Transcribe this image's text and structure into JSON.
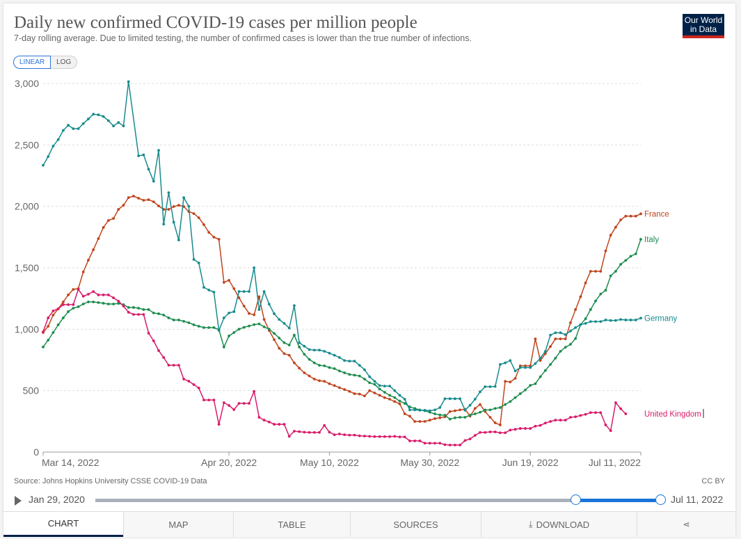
{
  "header": {
    "title": "Daily new confirmed COVID-19 cases per million people",
    "subtitle": "7-day rolling average. Due to limited testing, the number of confirmed cases is lower than the true number of infections.",
    "logo_line1": "Our World",
    "logo_line2": "in Data"
  },
  "scale_toggle": {
    "linear": "LINEAR",
    "log": "LOG",
    "selected": "LINEAR"
  },
  "footer": {
    "source": "Source: Johns Hopkins University CSSE COVID-19 Data",
    "license": "CC BY"
  },
  "timeline": {
    "start": "Jan 29, 2020",
    "end": "Jul 11, 2022",
    "range_start_fraction": 0.85,
    "range_end_fraction": 1.0
  },
  "tabs": [
    {
      "label": "CHART"
    },
    {
      "label": "MAP"
    },
    {
      "label": "TABLE"
    },
    {
      "label": "SOURCES"
    },
    {
      "label": "DOWNLOAD",
      "icon": "download-icon"
    },
    {
      "label": "",
      "icon": "share-icon"
    }
  ],
  "chart_data": {
    "type": "line",
    "title": "Daily new confirmed COVID-19 cases per million people",
    "x_start": "2022-03-14",
    "x_step": "1 day",
    "x_days": 119,
    "ylim": [
      0,
      3000
    ],
    "yticks": [
      0,
      500,
      1000,
      1500,
      2000,
      2500,
      3000
    ],
    "ytick_labels": [
      "0",
      "500",
      "1,000",
      "1,500",
      "2,000",
      "2,500",
      "3,000"
    ],
    "xticks": [
      {
        "day": 0,
        "label": "Mar 14, 2022"
      },
      {
        "day": 37,
        "label": "Apr 20, 2022"
      },
      {
        "day": 57,
        "label": "May 10, 2022"
      },
      {
        "day": 77,
        "label": "May 30, 2022"
      },
      {
        "day": 97,
        "label": "Jun 19, 2022"
      },
      {
        "day": 119,
        "label": "Jul 11, 2022"
      }
    ],
    "grid": true,
    "legend": "right (inline labels)",
    "series": [
      {
        "name": "France",
        "color": "#c0441c",
        "values": [
          973,
          1024,
          1115,
          1166,
          1222,
          1279,
          1324,
          1330,
          1466,
          1562,
          1647,
          1737,
          1828,
          1885,
          1901,
          1975,
          2009,
          2071,
          2083,
          2066,
          2049,
          2054,
          2037,
          2003,
          1975,
          1975,
          1998,
          2009,
          1998,
          1958,
          1941,
          1907,
          1851,
          1788,
          1749,
          1732,
          1381,
          1398,
          1330,
          1256,
          1188,
          1128,
          1117,
          1264,
          1079,
          990,
          915,
          845,
          801,
          788,
          726,
          683,
          645,
          619,
          594,
          581,
          576,
          556,
          541,
          524,
          509,
          494,
          475,
          472,
          457,
          500,
          481,
          462,
          443,
          430,
          411,
          392,
          311,
          292,
          249,
          249,
          249,
          260,
          272,
          279,
          287,
          330,
          336,
          343,
          349,
          292,
          355,
          387,
          330,
          283,
          238,
          221,
          576,
          570,
          600,
          702,
          702,
          702,
          921,
          745,
          801,
          859,
          921,
          921,
          921,
          1053,
          1160,
          1264,
          1377,
          1471,
          1471,
          1471,
          1637,
          1765,
          1830,
          1890,
          1920,
          1920,
          1920,
          1939
        ]
      },
      {
        "name": "Italy",
        "color": "#1e8c4e",
        "values": [
          855,
          911,
          973,
          1036,
          1092,
          1143,
          1171,
          1183,
          1205,
          1222,
          1222,
          1217,
          1211,
          1205,
          1205,
          1210,
          1200,
          1177,
          1177,
          1171,
          1160,
          1160,
          1132,
          1126,
          1115,
          1092,
          1075,
          1075,
          1064,
          1053,
          1036,
          1024,
          1013,
          1013,
          1013,
          996,
          855,
          945,
          973,
          1000,
          1015,
          1026,
          1037,
          1043,
          1019,
          1000,
          966,
          928,
          890,
          871,
          952,
          855,
          796,
          754,
          726,
          706,
          702,
          688,
          679,
          660,
          645,
          632,
          626,
          619,
          594,
          564,
          551,
          513,
          487,
          462,
          443,
          415,
          396,
          368,
          355,
          343,
          336,
          324,
          311,
          302,
          300,
          268,
          279,
          283,
          283,
          300,
          311,
          324,
          343,
          343,
          355,
          362,
          387,
          411,
          443,
          475,
          505,
          543,
          556,
          613,
          664,
          713,
          764,
          820,
          853,
          877,
          924,
          1037,
          1085,
          1160,
          1230,
          1286,
          1317,
          1434,
          1471,
          1528,
          1560,
          1594,
          1613,
          1732
        ]
      },
      {
        "name": "Germany",
        "color": "#178b8c",
        "values": [
          2334,
          2405,
          2490,
          2543,
          2618,
          2660,
          2632,
          2632,
          2673,
          2711,
          2750,
          2745,
          2731,
          2697,
          2654,
          2682,
          2654,
          3015,
          null,
          2411,
          2419,
          2302,
          2204,
          2456,
          1855,
          2111,
          1871,
          1726,
          2071,
          2000,
          1568,
          1539,
          1341,
          1319,
          1302,
          990,
          1092,
          1132,
          1143,
          1307,
          1307,
          1307,
          1500,
          1160,
          1307,
          1204,
          1126,
          1079,
          1047,
          1009,
          1192,
          890,
          862,
          834,
          830,
          830,
          820,
          805,
          788,
          770,
          745,
          740,
          740,
          706,
          670,
          613,
          576,
          541,
          537,
          537,
          500,
          462,
          430,
          343,
          343,
          340,
          340,
          336,
          343,
          362,
          434,
          434,
          434,
          434,
          340,
          381,
          430,
          490,
          532,
          532,
          534,
          713,
          726,
          745,
          660,
          688,
          688,
          688,
          720,
          764,
          820,
          952,
          971,
          971,
          956,
          985,
          1013,
          1037,
          1047,
          1062,
          1062,
          1062,
          1075,
          1071,
          1071,
          1079,
          1075,
          1075,
          1075,
          1090
        ]
      },
      {
        "name": "United Kingdom",
        "color": "#d81b6a",
        "values": [
          979,
          1092,
          1149,
          1166,
          1200,
          1200,
          1200,
          1324,
          1268,
          1285,
          1307,
          1279,
          1279,
          1279,
          1256,
          1228,
          1188,
          1138,
          1120,
          1120,
          1120,
          968,
          905,
          826,
          770,
          707,
          707,
          707,
          594,
          577,
          549,
          521,
          424,
          424,
          424,
          226,
          402,
          379,
          345,
          396,
          396,
          396,
          494,
          283,
          260,
          245,
          226,
          226,
          226,
          128,
          170,
          166,
          162,
          160,
          160,
          160,
          217,
          162,
          141,
          147,
          141,
          138,
          138,
          132,
          130,
          128,
          126,
          126,
          126,
          126,
          128,
          123,
          123,
          91,
          91,
          91,
          72,
          72,
          72,
          72,
          60,
          57,
          57,
          57,
          94,
          107,
          136,
          160,
          160,
          164,
          164,
          157,
          157,
          179,
          185,
          192,
          192,
          192,
          211,
          217,
          236,
          249,
          260,
          260,
          260,
          283,
          287,
          298,
          307,
          321,
          321,
          321,
          221,
          174,
          402,
          353,
          311
        ]
      }
    ]
  }
}
